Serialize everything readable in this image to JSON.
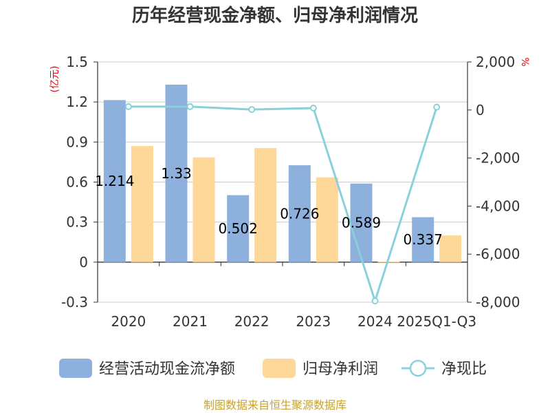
{
  "chart_data": {
    "type": "bar",
    "title": "历年经营现金净额、归母净利润情况",
    "categories": [
      "2020",
      "2021",
      "2022",
      "2023",
      "2024",
      "2025Q1-Q3"
    ],
    "y_left": {
      "unit": "(亿元)",
      "ylim": [
        -0.3,
        1.5
      ],
      "ticks": [
        "-0.3",
        "0",
        "0.3",
        "0.6",
        "0.9",
        "1.2",
        "1.5"
      ]
    },
    "y_right": {
      "unit": "%",
      "ylim": [
        -8000,
        2000
      ],
      "ticks": [
        "-8,000",
        "-6,000",
        "-4,000",
        "-2,000",
        "0",
        "2,000"
      ]
    },
    "series": [
      {
        "name": "经营活动现金流净额",
        "kind": "bar",
        "axis": "left",
        "color": "#8eb0dd",
        "values": [
          1.214,
          1.33,
          0.502,
          0.726,
          0.589,
          0.337
        ],
        "labels": [
          "1.214",
          "1.33",
          "0.502",
          "0.726",
          "0.589",
          "0.337"
        ]
      },
      {
        "name": "归母净利润",
        "kind": "bar",
        "axis": "left",
        "color": "#fdd898",
        "values": [
          0.87,
          0.785,
          0.855,
          0.635,
          0.004,
          0.2
        ]
      },
      {
        "name": "净现比",
        "kind": "line",
        "axis": "right",
        "color": "#88d1d8",
        "values": [
          140,
          140,
          20,
          80,
          -7950,
          120
        ]
      }
    ],
    "grid": true,
    "legend": "bottom"
  },
  "source": "制图数据来自恒生聚源数据库"
}
